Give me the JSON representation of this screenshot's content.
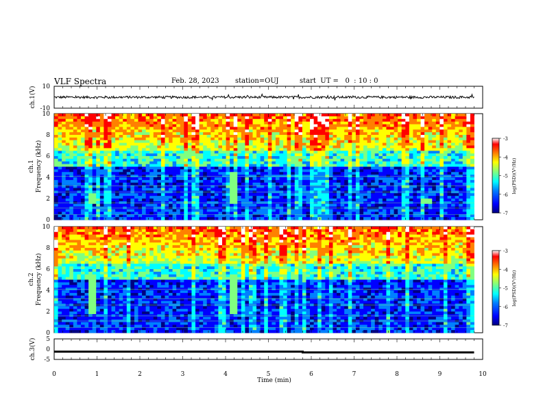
{
  "header": {
    "title": "VLF Spectra",
    "date": "Feb. 28, 2023",
    "station": "station=OUJ",
    "start": "start  UT =   0  : 10 : 0"
  },
  "colors": {
    "spectrum_colormap": [
      "#000080",
      "#0000ff",
      "#0080ff",
      "#00ffff",
      "#80ff80",
      "#ffff00",
      "#ff8000",
      "#ff0000",
      "#ffffff"
    ],
    "trace": "#000000"
  },
  "chart_data": [
    {
      "type": "line",
      "panel": "ch1-waveform",
      "ylabel": "ch.1(V)",
      "ylim": [
        -10,
        10
      ],
      "yticks": [
        10,
        -10
      ],
      "series": [
        {
          "x": [
            0,
            9.8
          ],
          "y_mean": [
            0,
            0
          ]
        }
      ]
    },
    {
      "type": "heatmap",
      "panel": "ch1-spectrogram",
      "ylabel": "ch.1 Frequency (kHz)",
      "ylim": [
        0,
        10
      ],
      "yticks": [
        0,
        2,
        4,
        6,
        8,
        10
      ],
      "xlim": [
        0,
        10
      ],
      "data_end_min": 9.8,
      "colorbar": {
        "label": "log(PSD)(V²/Hz)",
        "range": [
          -7,
          -3
        ],
        "ticks": [
          -3,
          -4,
          -5,
          -6,
          -7
        ]
      },
      "features": [
        {
          "kind": "chorus-burst",
          "time_min": 0.9,
          "freq_khz": [
            1.5,
            2.5
          ]
        },
        {
          "kind": "chorus-burst",
          "time_min": 4.2,
          "freq_khz": [
            1.5,
            4.5
          ]
        },
        {
          "kind": "chorus-burst",
          "time_min": 8.7,
          "freq_khz": [
            1.5,
            2.0
          ]
        }
      ]
    },
    {
      "type": "heatmap",
      "panel": "ch2-spectrogram",
      "ylabel": "ch.2 Frequency (kHz)",
      "ylim": [
        0,
        10
      ],
      "yticks": [
        0,
        2,
        4,
        6,
        8,
        10
      ],
      "xlim": [
        0,
        10
      ],
      "data_end_min": 9.8,
      "colorbar": {
        "label": "log(PSD)(V²/Hz)",
        "range": [
          -7,
          -3
        ],
        "ticks": [
          -3,
          -4,
          -5,
          -6,
          -7
        ]
      },
      "features": [
        {
          "kind": "chorus-burst",
          "time_min": 0.9,
          "freq_khz": [
            1.8,
            5.5
          ]
        },
        {
          "kind": "chorus-burst",
          "time_min": 4.2,
          "freq_khz": [
            1.8,
            5.5
          ]
        }
      ]
    },
    {
      "type": "line",
      "panel": "ch3-trace",
      "ylabel": "ch.3(V)",
      "ylim": [
        -5,
        5
      ],
      "yticks": [
        5,
        0,
        -5
      ],
      "series": [
        {
          "x": [
            0,
            5.8,
            5.8,
            9.8
          ],
          "y": [
            -1.2,
            -1.2,
            -1.6,
            -1.6
          ]
        }
      ]
    }
  ],
  "xaxis": {
    "label": "Time (min)",
    "ticks": [
      0,
      1,
      2,
      3,
      4,
      5,
      6,
      7,
      8,
      9,
      10
    ]
  }
}
